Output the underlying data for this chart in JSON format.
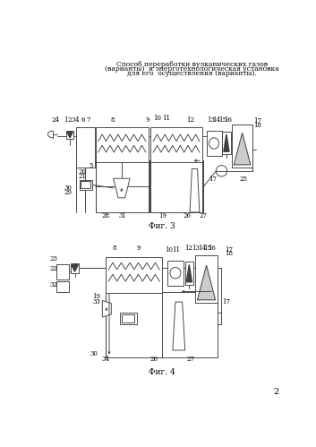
{
  "title_lines": [
    "Способ переработки вулканических газов",
    "(варианты)  и энерготехнологическая установка",
    "для его  осуществления (варианты)."
  ],
  "fig3_label": "Фиг. 3",
  "fig4_label": "Фиг. 4",
  "page_number": "2",
  "bg_color": "#ffffff",
  "line_color": "#404040",
  "text_color": "#000000"
}
